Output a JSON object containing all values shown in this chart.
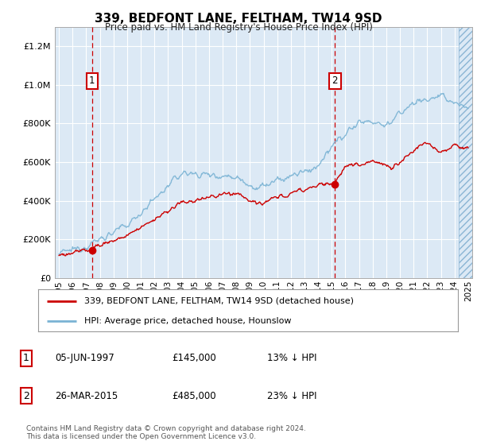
{
  "title": "339, BEDFONT LANE, FELTHAM, TW14 9SD",
  "subtitle": "Price paid vs. HM Land Registry's House Price Index (HPI)",
  "sale1_date": "05-JUN-1997",
  "sale1_price": 145000,
  "sale1_label": "13% ↓ HPI",
  "sale2_date": "26-MAR-2015",
  "sale2_price": 485000,
  "sale2_label": "23% ↓ HPI",
  "legend_red": "339, BEDFONT LANE, FELTHAM, TW14 9SD (detached house)",
  "legend_blue": "HPI: Average price, detached house, Hounslow",
  "table_row1": [
    "1",
    "05-JUN-1997",
    "£145,000",
    "13% ↓ HPI"
  ],
  "table_row2": [
    "2",
    "26-MAR-2015",
    "£485,000",
    "23% ↓ HPI"
  ],
  "footer": "Contains HM Land Registry data © Crown copyright and database right 2024.\nThis data is licensed under the Open Government Licence v3.0.",
  "bg_color": "#dce9f5",
  "grid_color": "#ffffff",
  "red_color": "#cc0000",
  "blue_color": "#7ab3d4",
  "ylim": [
    0,
    1300000
  ],
  "yticks": [
    0,
    200000,
    400000,
    600000,
    800000,
    1000000,
    1200000
  ],
  "sale1_year": 1997.43,
  "sale2_year": 2015.23,
  "xmin": 1994.7,
  "xmax": 2025.3
}
